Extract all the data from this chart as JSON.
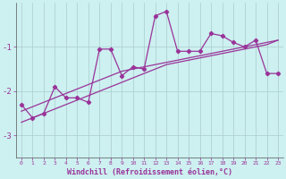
{
  "xlabel": "Windchill (Refroidissement éolien,°C)",
  "background_color": "#cdf0f0",
  "grid_color": "#aacccc",
  "line_color": "#993399",
  "x_values": [
    0,
    1,
    2,
    3,
    4,
    5,
    6,
    7,
    8,
    9,
    10,
    11,
    12,
    13,
    14,
    15,
    16,
    17,
    18,
    19,
    20,
    21,
    22,
    23
  ],
  "y_main": [
    -2.3,
    -2.6,
    -2.5,
    -1.9,
    -2.15,
    -2.15,
    -2.25,
    -1.05,
    -1.05,
    -1.65,
    -1.45,
    -1.5,
    -0.3,
    -0.2,
    -1.1,
    -1.1,
    -1.1,
    -0.7,
    -0.75,
    -0.9,
    -1.0,
    -0.85,
    -1.6,
    -1.6
  ],
  "y_reg1": [
    -2.45,
    -2.35,
    -2.25,
    -2.15,
    -2.05,
    -1.95,
    -1.85,
    -1.75,
    -1.65,
    -1.55,
    -1.5,
    -1.45,
    -1.4,
    -1.35,
    -1.3,
    -1.25,
    -1.2,
    -1.15,
    -1.1,
    -1.05,
    -1.0,
    -0.95,
    -0.9,
    -0.85
  ],
  "y_reg2": [
    -2.7,
    -2.6,
    -2.5,
    -2.4,
    -2.3,
    -2.2,
    -2.1,
    -2.0,
    -1.9,
    -1.8,
    -1.7,
    -1.6,
    -1.5,
    -1.4,
    -1.35,
    -1.3,
    -1.25,
    -1.2,
    -1.15,
    -1.1,
    -1.05,
    -1.0,
    -0.95,
    -0.85
  ],
  "ylim": [
    -3.5,
    -0.0
  ],
  "xlim": [
    -0.5,
    23.5
  ],
  "yticks": [
    -3,
    -2,
    -1
  ],
  "xtick_labels": [
    "0",
    "1",
    "2",
    "3",
    "4",
    "5",
    "6",
    "7",
    "8",
    "9",
    "10",
    "11",
    "12",
    "13",
    "14",
    "15",
    "16",
    "17",
    "18",
    "19",
    "20",
    "21",
    "22",
    "23"
  ]
}
